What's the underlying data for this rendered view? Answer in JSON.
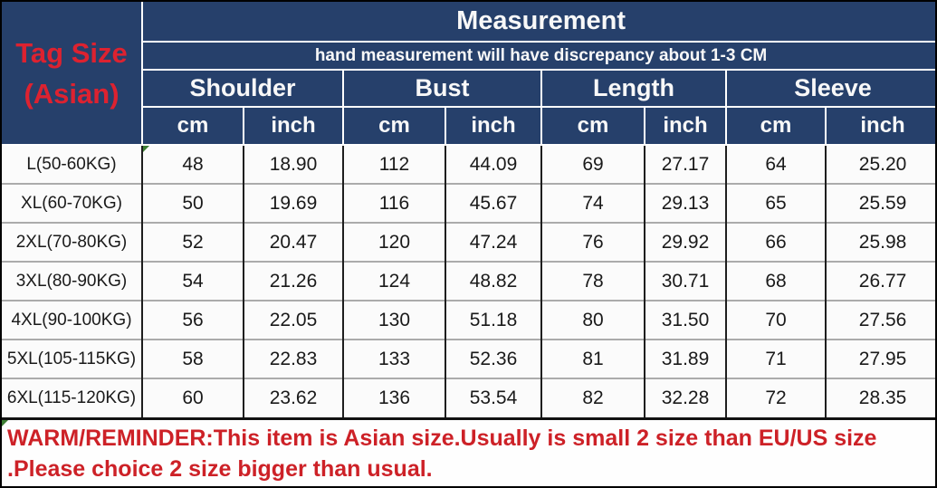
{
  "colors": {
    "header_bg": "#26406b",
    "header_text": "#f8f8f8",
    "tag_red": "#dd2230",
    "reminder_red": "#cd2127",
    "cell_bg": "#fbfbfb",
    "grid_dark": "#1e1e1e",
    "grid_light": "#ababab"
  },
  "header": {
    "corner_line1": "Tag Size",
    "corner_line2": "(Asian)",
    "title": "Measurement",
    "subtitle": "hand measurement will have discrepancy about 1-3 CM",
    "groups": [
      {
        "label": "Shoulder"
      },
      {
        "label": "Bust"
      },
      {
        "label": "Length"
      },
      {
        "label": "Sleeve"
      }
    ],
    "units": [
      "cm",
      "inch",
      "cm",
      "inch",
      "cm",
      "inch",
      "cm",
      "inch"
    ]
  },
  "rows": [
    {
      "size": "L(50-60KG)",
      "values": [
        "48",
        "18.90",
        "112",
        "44.09",
        "69",
        "27.17",
        "64",
        "25.20"
      ]
    },
    {
      "size": "XL(60-70KG)",
      "values": [
        "50",
        "19.69",
        "116",
        "45.67",
        "74",
        "29.13",
        "65",
        "25.59"
      ]
    },
    {
      "size": "2XL(70-80KG)",
      "values": [
        "52",
        "20.47",
        "120",
        "47.24",
        "76",
        "29.92",
        "66",
        "25.98"
      ]
    },
    {
      "size": "3XL(80-90KG)",
      "values": [
        "54",
        "21.26",
        "124",
        "48.82",
        "78",
        "30.71",
        "68",
        "26.77"
      ]
    },
    {
      "size": "4XL(90-100KG)",
      "values": [
        "56",
        "22.05",
        "130",
        "51.18",
        "80",
        "31.50",
        "70",
        "27.56"
      ]
    },
    {
      "size": "5XL(105-115KG)",
      "values": [
        "58",
        "22.83",
        "133",
        "52.36",
        "81",
        "31.89",
        "71",
        "27.95"
      ]
    },
    {
      "size": "6XL(115-120KG)",
      "values": [
        "60",
        "23.62",
        "136",
        "53.54",
        "82",
        "32.28",
        "72",
        "28.35"
      ]
    }
  ],
  "reminder": {
    "line1": "WARM/REMINDER:This item is Asian size.Usually is small 2 size than EU/US size",
    "line2": ".Please choice 2 size bigger than usual."
  },
  "chart_data": {
    "type": "table",
    "title": "Measurement",
    "note": "hand measurement will have discrepancy about 1-3 CM",
    "columns": [
      "Tag Size (Asian)",
      "Shoulder cm",
      "Shoulder inch",
      "Bust cm",
      "Bust inch",
      "Length cm",
      "Length inch",
      "Sleeve cm",
      "Sleeve inch"
    ],
    "rows": [
      [
        "L(50-60KG)",
        48,
        18.9,
        112,
        44.09,
        69,
        27.17,
        64,
        25.2
      ],
      [
        "XL(60-70KG)",
        50,
        19.69,
        116,
        45.67,
        74,
        29.13,
        65,
        25.59
      ],
      [
        "2XL(70-80KG)",
        52,
        20.47,
        120,
        47.24,
        76,
        29.92,
        66,
        25.98
      ],
      [
        "3XL(80-90KG)",
        54,
        21.26,
        124,
        48.82,
        78,
        30.71,
        68,
        26.77
      ],
      [
        "4XL(90-100KG)",
        56,
        22.05,
        130,
        51.18,
        80,
        31.5,
        70,
        27.56
      ],
      [
        "5XL(105-115KG)",
        58,
        22.83,
        133,
        52.36,
        81,
        31.89,
        71,
        27.95
      ],
      [
        "6XL(115-120KG)",
        60,
        23.62,
        136,
        53.54,
        82,
        32.28,
        72,
        28.35
      ]
    ],
    "warning": "WARM/REMINDER:This item is Asian size.Usually is small 2 size than EU/US size .Please choice 2 size bigger than usual."
  }
}
